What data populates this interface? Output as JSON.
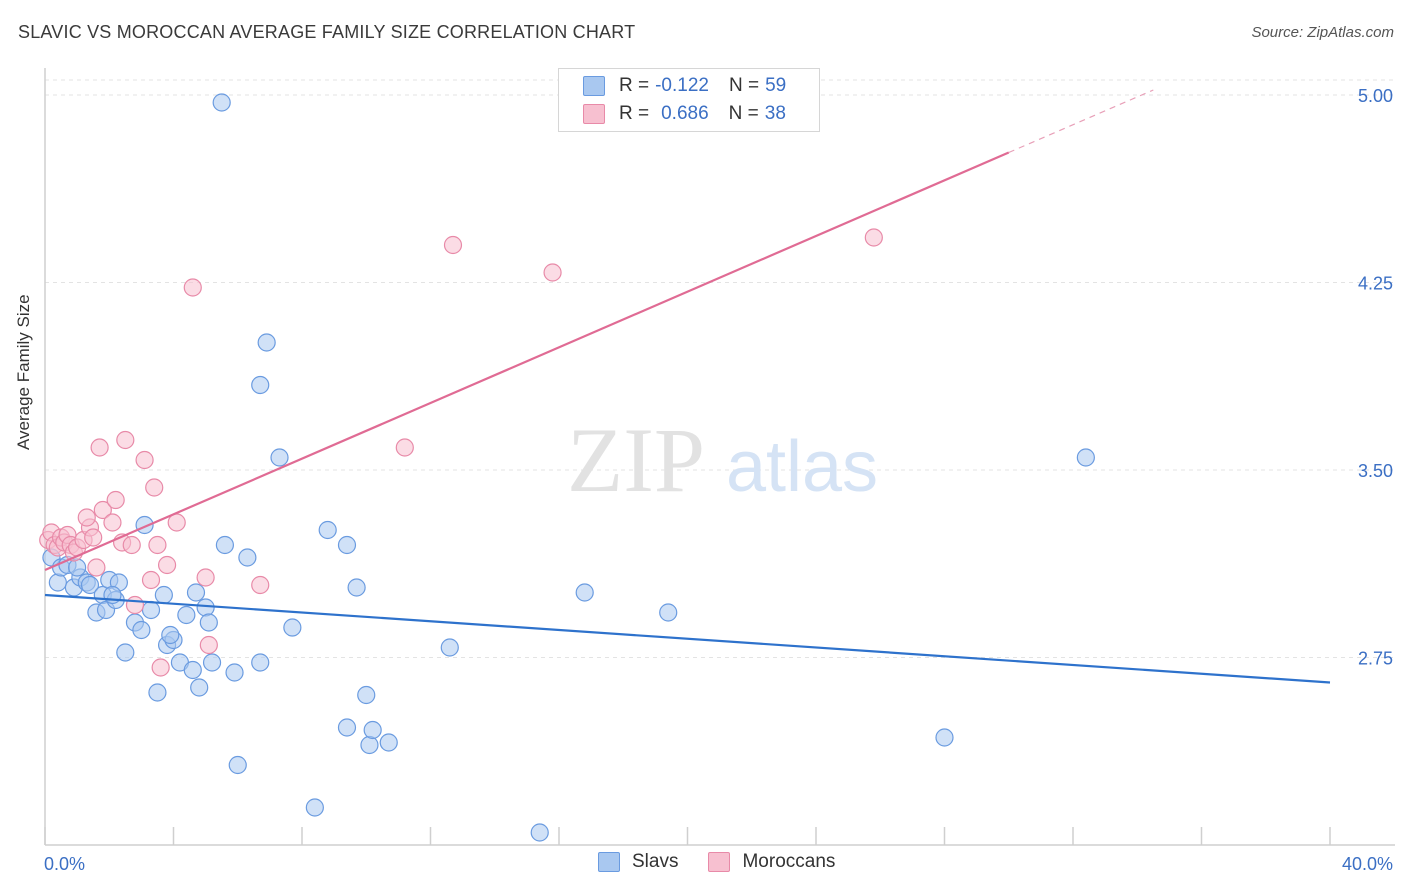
{
  "title": "SLAVIC VS MOROCCAN AVERAGE FAMILY SIZE CORRELATION CHART",
  "source": "Source: ZipAtlas.com",
  "watermark": {
    "zip": "ZIP",
    "atlas": "atlas"
  },
  "legend": {
    "r_label": "R =",
    "n_label": "N =",
    "rows": [
      {
        "r": "-0.122",
        "n": "59",
        "color": "#a9c8f0",
        "border": "#6a9be0"
      },
      {
        "r": "0.686",
        "n": "38",
        "color": "#f7c0d0",
        "border": "#e88aa8"
      }
    ]
  },
  "bottom_legend": [
    {
      "label": "Slavs",
      "color": "#a9c8f0",
      "border": "#6a9be0"
    },
    {
      "label": "Moroccans",
      "color": "#f7c0d0",
      "border": "#e88aa8"
    }
  ],
  "chart_data": {
    "type": "scatter",
    "title": "SLAVIC VS MOROCCAN AVERAGE FAMILY SIZE CORRELATION CHART",
    "xlabel": "",
    "ylabel": "Average Family Size",
    "xlim": [
      0,
      40
    ],
    "ylim": [
      2.0,
      5.1
    ],
    "x_tick_labels": [
      "0.0%",
      "40.0%"
    ],
    "y_ticks": [
      2.75,
      3.5,
      4.25,
      5.0
    ],
    "y_tick_labels": [
      "2.75",
      "3.50",
      "4.25",
      "5.00"
    ],
    "grid": true,
    "series": [
      {
        "name": "Slavs",
        "color": "#6a9be0",
        "fill": "#a9c8f0",
        "trend": {
          "x": [
            0,
            40
          ],
          "y": [
            3.0,
            2.65
          ]
        },
        "points": [
          [
            0.2,
            3.15
          ],
          [
            0.4,
            3.05
          ],
          [
            0.5,
            3.11
          ],
          [
            0.7,
            3.12
          ],
          [
            0.9,
            3.03
          ],
          [
            1.1,
            3.07
          ],
          [
            1.3,
            3.05
          ],
          [
            1.4,
            3.04
          ],
          [
            1.6,
            2.93
          ],
          [
            1.8,
            3.0
          ],
          [
            1.9,
            2.94
          ],
          [
            2.0,
            3.06
          ],
          [
            2.2,
            2.98
          ],
          [
            2.3,
            3.05
          ],
          [
            2.5,
            2.77
          ],
          [
            2.8,
            2.89
          ],
          [
            3.0,
            2.86
          ],
          [
            3.1,
            3.28
          ],
          [
            3.3,
            2.94
          ],
          [
            3.5,
            2.61
          ],
          [
            3.7,
            3.0
          ],
          [
            3.8,
            2.8
          ],
          [
            4.0,
            2.82
          ],
          [
            4.2,
            2.73
          ],
          [
            4.4,
            2.92
          ],
          [
            4.6,
            2.7
          ],
          [
            4.7,
            3.01
          ],
          [
            4.8,
            2.63
          ],
          [
            5.0,
            2.95
          ],
          [
            5.1,
            2.89
          ],
          [
            5.2,
            2.73
          ],
          [
            5.5,
            4.97
          ],
          [
            5.6,
            3.2
          ],
          [
            5.9,
            2.69
          ],
          [
            6.0,
            2.32
          ],
          [
            6.3,
            3.15
          ],
          [
            6.7,
            3.84
          ],
          [
            6.7,
            2.73
          ],
          [
            6.9,
            4.01
          ],
          [
            7.3,
            3.55
          ],
          [
            7.7,
            2.87
          ],
          [
            8.4,
            2.15
          ],
          [
            8.8,
            3.26
          ],
          [
            9.4,
            2.47
          ],
          [
            9.4,
            3.2
          ],
          [
            9.7,
            3.03
          ],
          [
            10.0,
            2.6
          ],
          [
            10.1,
            2.4
          ],
          [
            10.2,
            2.46
          ],
          [
            10.7,
            2.41
          ],
          [
            12.6,
            2.79
          ],
          [
            15.4,
            2.05
          ],
          [
            16.8,
            3.01
          ],
          [
            19.4,
            2.93
          ],
          [
            32.4,
            3.55
          ],
          [
            28.0,
            2.43
          ],
          [
            1.0,
            3.11
          ],
          [
            2.1,
            3.0
          ],
          [
            3.9,
            2.84
          ]
        ]
      },
      {
        "name": "Moroccans",
        "color": "#e88aa8",
        "fill": "#f7c0d0",
        "trend": {
          "x": [
            0,
            30
          ],
          "y": [
            3.1,
            4.77
          ]
        },
        "trend_dashed": {
          "x": [
            30,
            34.5
          ],
          "y": [
            4.77,
            5.02
          ]
        },
        "points": [
          [
            0.1,
            3.22
          ],
          [
            0.2,
            3.25
          ],
          [
            0.3,
            3.2
          ],
          [
            0.4,
            3.19
          ],
          [
            0.5,
            3.23
          ],
          [
            0.6,
            3.21
          ],
          [
            0.7,
            3.24
          ],
          [
            0.8,
            3.2
          ],
          [
            0.9,
            3.17
          ],
          [
            1.0,
            3.19
          ],
          [
            1.2,
            3.22
          ],
          [
            1.4,
            3.27
          ],
          [
            1.5,
            3.23
          ],
          [
            1.6,
            3.11
          ],
          [
            1.7,
            3.59
          ],
          [
            1.8,
            3.34
          ],
          [
            2.1,
            3.29
          ],
          [
            2.2,
            3.38
          ],
          [
            2.4,
            3.21
          ],
          [
            2.5,
            3.62
          ],
          [
            2.7,
            3.2
          ],
          [
            2.8,
            2.96
          ],
          [
            3.1,
            3.54
          ],
          [
            3.3,
            3.06
          ],
          [
            3.4,
            3.43
          ],
          [
            3.5,
            3.2
          ],
          [
            3.6,
            2.71
          ],
          [
            3.8,
            3.12
          ],
          [
            4.1,
            3.29
          ],
          [
            4.6,
            4.23
          ],
          [
            5.0,
            3.07
          ],
          [
            5.1,
            2.8
          ],
          [
            6.7,
            3.04
          ],
          [
            11.2,
            3.59
          ],
          [
            12.7,
            4.4
          ],
          [
            15.8,
            4.29
          ],
          [
            25.8,
            4.43
          ],
          [
            1.3,
            3.31
          ]
        ]
      }
    ]
  }
}
